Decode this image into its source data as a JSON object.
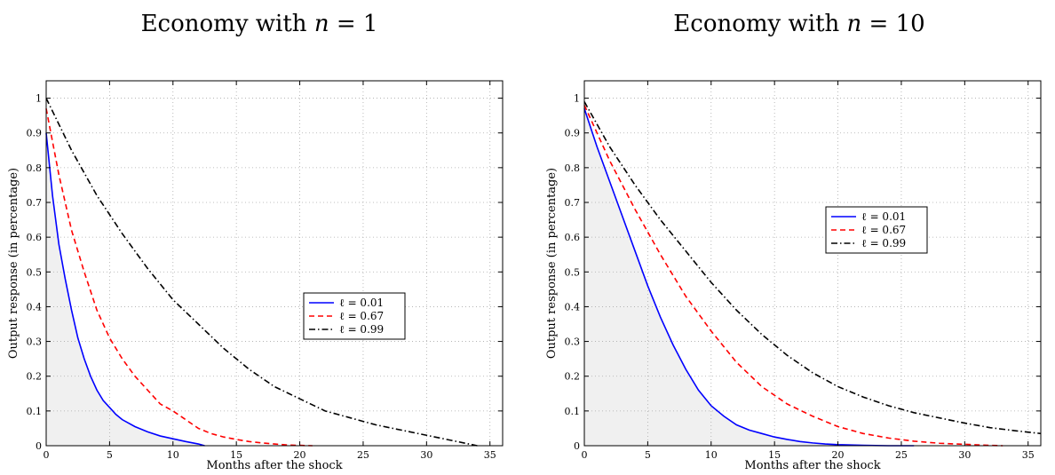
{
  "chart_data": [
    {
      "type": "line",
      "title_prefix": "Economy with ",
      "title_var": "n",
      "title_suffix": " = 1",
      "xlabel": "Months after the shock",
      "ylabel": "Output response (in percentage)",
      "xlim": [
        0,
        36
      ],
      "ylim": [
        0,
        1.05
      ],
      "xticks": [
        0,
        5,
        10,
        15,
        20,
        25,
        30,
        35
      ],
      "yticks": [
        0,
        0.1,
        0.2,
        0.3,
        0.4,
        0.5,
        0.6,
        0.7,
        0.8,
        0.9,
        1
      ],
      "grid": true,
      "legend_position": "center-right",
      "shaded_area_series": 0,
      "series": [
        {
          "name": "ℓ = 0.01",
          "color": "#0000ff",
          "dash": "solid",
          "x": [
            0,
            0.5,
            1,
            1.5,
            2,
            2.5,
            3,
            3.5,
            4,
            4.5,
            5,
            5.5,
            6,
            7,
            8,
            9,
            10,
            11,
            12,
            12.5
          ],
          "y": [
            0.9,
            0.72,
            0.58,
            0.48,
            0.39,
            0.31,
            0.25,
            0.2,
            0.16,
            0.13,
            0.11,
            0.09,
            0.075,
            0.055,
            0.04,
            0.028,
            0.02,
            0.012,
            0.005,
            0
          ]
        },
        {
          "name": "ℓ = 0.67",
          "color": "#ff0000",
          "dash": "dashed",
          "x": [
            0,
            1,
            2,
            3,
            4,
            5,
            6,
            7,
            8,
            9,
            10,
            11,
            12,
            13,
            14,
            15,
            16,
            17,
            18,
            19,
            20,
            21
          ],
          "y": [
            0.97,
            0.78,
            0.62,
            0.5,
            0.39,
            0.31,
            0.25,
            0.2,
            0.16,
            0.12,
            0.1,
            0.075,
            0.05,
            0.035,
            0.025,
            0.018,
            0.012,
            0.008,
            0.005,
            0.002,
            0.001,
            0
          ]
        },
        {
          "name": "ℓ = 0.99",
          "color": "#000000",
          "dash": "dashdot",
          "x": [
            0,
            2,
            4,
            6,
            8,
            10,
            12,
            14,
            16,
            18,
            20,
            22,
            24,
            26,
            28,
            30,
            32,
            34
          ],
          "y": [
            1.0,
            0.85,
            0.72,
            0.61,
            0.51,
            0.42,
            0.35,
            0.28,
            0.22,
            0.17,
            0.135,
            0.1,
            0.08,
            0.06,
            0.045,
            0.03,
            0.015,
            0
          ]
        }
      ]
    },
    {
      "type": "line",
      "title_prefix": "Economy with ",
      "title_var": "n",
      "title_suffix": " = 10",
      "xlabel": "Months after the shock",
      "ylabel": "Output response (in percentage)",
      "xlim": [
        0,
        36
      ],
      "ylim": [
        0,
        1.05
      ],
      "xticks": [
        0,
        5,
        10,
        15,
        20,
        25,
        30,
        35
      ],
      "yticks": [
        0,
        0.1,
        0.2,
        0.3,
        0.4,
        0.5,
        0.6,
        0.7,
        0.8,
        0.9,
        1
      ],
      "grid": true,
      "legend_position": "upper-right",
      "shaded_area_series": 0,
      "series": [
        {
          "name": "ℓ = 0.01",
          "color": "#0000ff",
          "dash": "solid",
          "x": [
            0,
            1,
            2,
            3,
            4,
            5,
            6,
            7,
            8,
            9,
            10,
            11,
            12,
            13,
            14,
            15,
            16,
            17,
            18,
            19,
            20,
            22,
            24,
            26
          ],
          "y": [
            0.97,
            0.86,
            0.76,
            0.66,
            0.56,
            0.46,
            0.37,
            0.29,
            0.22,
            0.16,
            0.115,
            0.085,
            0.06,
            0.045,
            0.035,
            0.025,
            0.018,
            0.012,
            0.008,
            0.005,
            0.003,
            0.001,
            0,
            0
          ]
        },
        {
          "name": "ℓ = 0.67",
          "color": "#ff0000",
          "dash": "dashed",
          "x": [
            0,
            2,
            4,
            6,
            8,
            10,
            12,
            14,
            16,
            18,
            20,
            22,
            24,
            26,
            28,
            30,
            32,
            33
          ],
          "y": [
            0.98,
            0.82,
            0.68,
            0.55,
            0.43,
            0.33,
            0.24,
            0.17,
            0.12,
            0.085,
            0.055,
            0.035,
            0.022,
            0.013,
            0.007,
            0.004,
            0.001,
            0
          ]
        },
        {
          "name": "ℓ = 0.99",
          "color": "#000000",
          "dash": "dashdot",
          "x": [
            0,
            2,
            4,
            6,
            8,
            10,
            12,
            14,
            16,
            18,
            20,
            22,
            24,
            26,
            28,
            30,
            32,
            34,
            36
          ],
          "y": [
            0.99,
            0.86,
            0.75,
            0.65,
            0.56,
            0.47,
            0.39,
            0.32,
            0.26,
            0.21,
            0.17,
            0.14,
            0.115,
            0.095,
            0.08,
            0.065,
            0.052,
            0.043,
            0.035
          ]
        }
      ]
    }
  ]
}
